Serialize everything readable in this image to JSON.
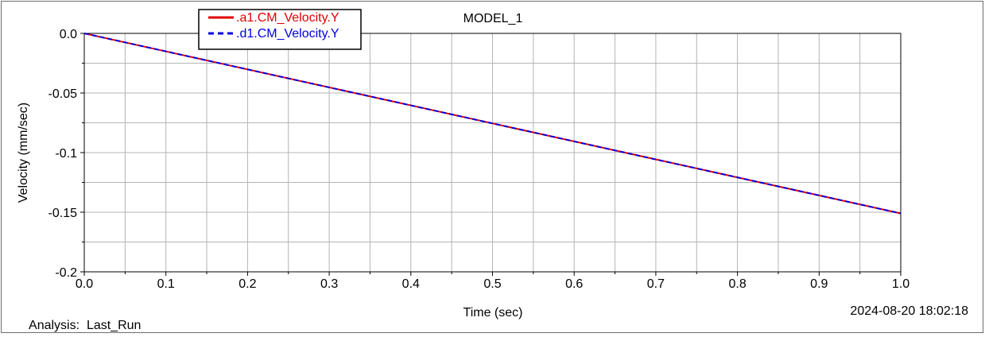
{
  "chart_data": {
    "type": "line",
    "title": "MODEL_1",
    "xlabel": "Time (sec)",
    "ylabel": "Velocity (mm/sec)",
    "xlim": [
      0.0,
      1.0
    ],
    "ylim": [
      -0.2,
      0.0
    ],
    "x_ticks": [
      "0.0",
      "0.1",
      "0.2",
      "0.3",
      "0.4",
      "0.5",
      "0.6",
      "0.7",
      "0.8",
      "0.9",
      "1.0"
    ],
    "y_ticks": [
      "0.0",
      "-0.05",
      "-0.1",
      "-0.15",
      "-0.2"
    ],
    "grid": true,
    "legend_position": "top-left",
    "series": [
      {
        "name": ".a1.CM_Velocity.Y",
        "color": "#e00000",
        "style": "solid",
        "x": [
          0.0,
          1.0
        ],
        "y": [
          0.0,
          -0.151
        ]
      },
      {
        "name": ".d1.CM_Velocity.Y",
        "color": "#0000e0",
        "style": "dashed",
        "x": [
          0.0,
          1.0
        ],
        "y": [
          0.0,
          -0.151
        ]
      }
    ]
  },
  "footer": {
    "analysis_label": "Analysis:",
    "analysis_value": "Last_Run",
    "timestamp": "2024-08-20 18:02:18"
  }
}
